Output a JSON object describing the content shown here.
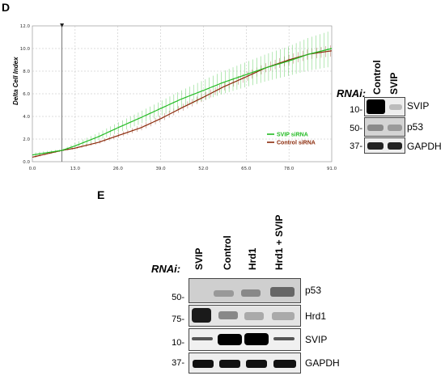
{
  "panel_d": {
    "letter": "D",
    "rnai_label": "RNAi:",
    "lanes": [
      "Control",
      "SVIP"
    ],
    "markers": [
      "10-",
      "50-",
      "37-"
    ],
    "proteins": [
      "SVIP",
      "p53",
      "GAPDH"
    ]
  },
  "panel_e": {
    "letter": "E",
    "rnai_label": "RNAi:",
    "lanes": [
      "SVIP",
      "Control",
      "Hrd1",
      "Hrd1 + SVIP"
    ],
    "markers": [
      "50-",
      "75-",
      "10-",
      "37-"
    ],
    "proteins": [
      "p53",
      "Hrd1",
      "SVIP",
      "GAPDH"
    ]
  },
  "chart_data": {
    "type": "line",
    "title": "",
    "xlabel": "",
    "ylabel": "Delta Cell Index",
    "xlim": [
      0,
      91
    ],
    "ylim": [
      0,
      12
    ],
    "x_ticks": [
      "0.0",
      "13.0",
      "26.0",
      "39.0",
      "52.0",
      "65.0",
      "78.0",
      "91.0"
    ],
    "y_ticks": [
      "0.0",
      "2.0",
      "4.0",
      "6.0",
      "8.0",
      "10.0",
      "12.0"
    ],
    "marker_x": 9,
    "legend_position": "bottom-right",
    "grid": true,
    "series": [
      {
        "name": "SVIP siRNA",
        "color": "#22bb22",
        "x": [
          0,
          9,
          13,
          20,
          26,
          33,
          39,
          45,
          52,
          58,
          65,
          71,
          78,
          84,
          91
        ],
        "values": [
          0.6,
          1.0,
          1.4,
          2.2,
          3.0,
          3.9,
          4.7,
          5.5,
          6.3,
          7.0,
          7.7,
          8.3,
          8.9,
          9.5,
          10.0
        ],
        "error": [
          0.2,
          0.1,
          0.25,
          0.35,
          0.45,
          0.55,
          0.65,
          0.75,
          0.9,
          1.0,
          1.1,
          1.2,
          1.3,
          1.45,
          1.6
        ]
      },
      {
        "name": "Control siRNA",
        "color": "#8b2a0a",
        "x": [
          0,
          9,
          13,
          20,
          26,
          33,
          39,
          45,
          52,
          58,
          65,
          71,
          78,
          84,
          91
        ],
        "values": [
          0.4,
          1.0,
          1.2,
          1.7,
          2.3,
          3.0,
          3.8,
          4.7,
          5.7,
          6.6,
          7.5,
          8.3,
          9.0,
          9.5,
          9.8
        ],
        "error": [
          0.1,
          0.05,
          0.1,
          0.15,
          0.2,
          0.25,
          0.3,
          0.3,
          0.35,
          0.35,
          0.4,
          0.4,
          0.45,
          0.45,
          0.5
        ]
      }
    ]
  }
}
